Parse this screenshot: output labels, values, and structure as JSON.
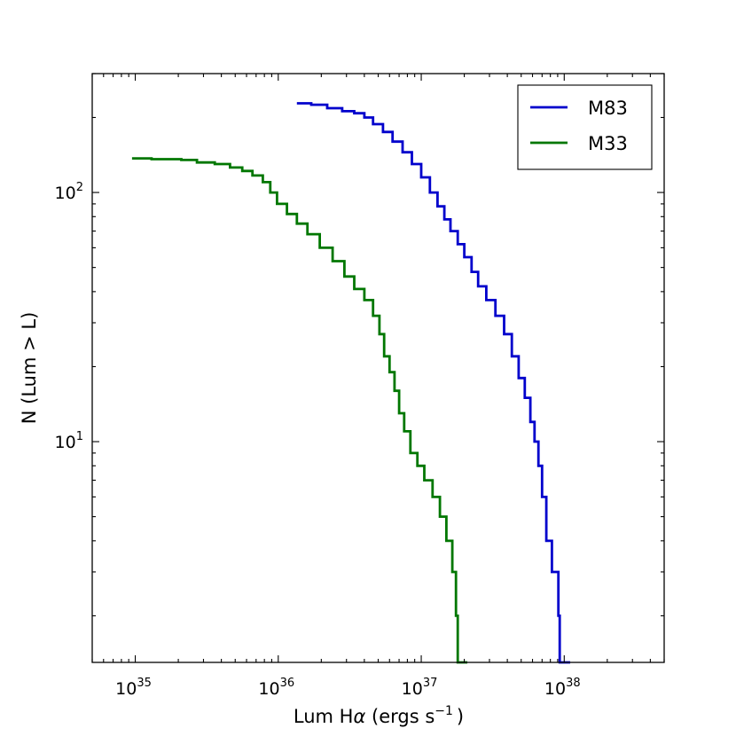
{
  "chart_data": {
    "type": "line",
    "title": "",
    "xlabel": "Lum H",
    "xlabel_symbol": "α",
    "xlabel_units": "(ergs  s",
    "xlabel_units_exp": "−1",
    "xlabel_units_close": ")",
    "ylabel": "N (Lum > L)",
    "x_scale": "log",
    "y_scale": "log",
    "xlim": [
      5e+34,
      5e+38
    ],
    "ylim": [
      1.3,
      300
    ],
    "x_ticks": [
      {
        "value": 1e+35,
        "base": "10",
        "exp": "35"
      },
      {
        "value": 1e+36,
        "base": "10",
        "exp": "36"
      },
      {
        "value": 1e+37,
        "base": "10",
        "exp": "37"
      },
      {
        "value": 1e+38,
        "base": "10",
        "exp": "38"
      }
    ],
    "y_ticks": [
      {
        "value": 10,
        "base": "10",
        "exp": "1"
      },
      {
        "value": 100,
        "base": "10",
        "exp": "2"
      }
    ],
    "grid": false,
    "legend_position": "top-right",
    "series": [
      {
        "name": "M83",
        "color": "#0000cc",
        "points": [
          [
            1.35e+36,
            228
          ],
          [
            1.7e+36,
            225
          ],
          [
            2.2e+36,
            218
          ],
          [
            2.8e+36,
            212
          ],
          [
            3.4e+36,
            208
          ],
          [
            4e+36,
            200
          ],
          [
            4.6e+36,
            188
          ],
          [
            5.4e+36,
            175
          ],
          [
            6.3e+36,
            160
          ],
          [
            7.4e+36,
            145
          ],
          [
            8.6e+36,
            130
          ],
          [
            1e+37,
            115
          ],
          [
            1.15e+37,
            100
          ],
          [
            1.3e+37,
            88
          ],
          [
            1.45e+37,
            78
          ],
          [
            1.6e+37,
            70
          ],
          [
            1.8e+37,
            62
          ],
          [
            2e+37,
            55
          ],
          [
            2.25e+37,
            48
          ],
          [
            2.5e+37,
            42
          ],
          [
            2.85e+37,
            37
          ],
          [
            3.3e+37,
            32
          ],
          [
            3.8e+37,
            27
          ],
          [
            4.3e+37,
            22
          ],
          [
            4.8e+37,
            18
          ],
          [
            5.3e+37,
            15
          ],
          [
            5.8e+37,
            12
          ],
          [
            6.2e+37,
            10
          ],
          [
            6.6e+37,
            8
          ],
          [
            7e+37,
            6
          ],
          [
            7.5e+37,
            4
          ],
          [
            8.2e+37,
            3
          ],
          [
            9.1e+37,
            2
          ],
          [
            9.3e+37,
            1.3
          ],
          [
            1.1e+38,
            1.3
          ]
        ]
      },
      {
        "name": "M33",
        "color": "#007700",
        "points": [
          [
            9.5e+34,
            137
          ],
          [
            1.3e+35,
            136
          ],
          [
            2.1e+35,
            135
          ],
          [
            2.7e+35,
            132
          ],
          [
            3.6e+35,
            130
          ],
          [
            4.6e+35,
            126
          ],
          [
            5.6e+35,
            122
          ],
          [
            6.6e+35,
            117
          ],
          [
            7.8e+35,
            110
          ],
          [
            8.8e+35,
            100
          ],
          [
            9.8e+35,
            90
          ],
          [
            1.15e+36,
            82
          ],
          [
            1.35e+36,
            75
          ],
          [
            1.6e+36,
            68
          ],
          [
            1.95e+36,
            60
          ],
          [
            2.4e+36,
            53
          ],
          [
            2.9e+36,
            46
          ],
          [
            3.4e+36,
            41
          ],
          [
            4e+36,
            37
          ],
          [
            4.6e+36,
            32
          ],
          [
            5.1e+36,
            27
          ],
          [
            5.5e+36,
            22
          ],
          [
            6e+36,
            19
          ],
          [
            6.5e+36,
            16
          ],
          [
            7e+36,
            13
          ],
          [
            7.6e+36,
            11
          ],
          [
            8.4e+36,
            9
          ],
          [
            9.4e+36,
            8
          ],
          [
            1.05e+37,
            7
          ],
          [
            1.2e+37,
            6
          ],
          [
            1.35e+37,
            5
          ],
          [
            1.5e+37,
            4
          ],
          [
            1.65e+37,
            3
          ],
          [
            1.75e+37,
            2
          ],
          [
            1.8e+37,
            1.3
          ],
          [
            2.1e+37,
            1.3
          ]
        ]
      }
    ]
  }
}
